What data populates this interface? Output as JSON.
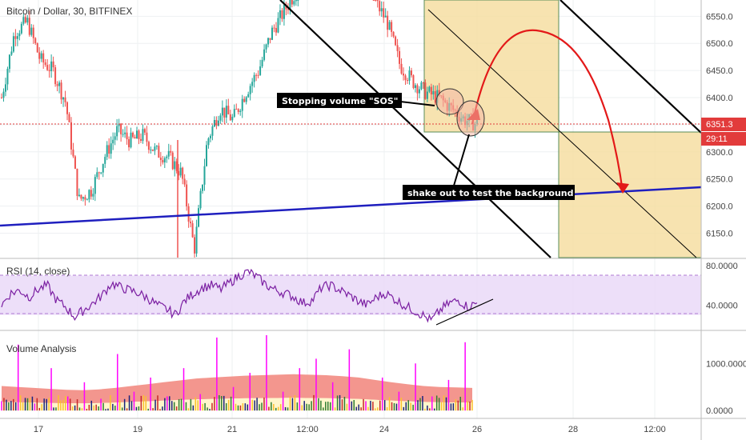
{
  "chart_data": [
    {
      "type": "candlestick",
      "title": "Bitcoin / Dollar, 30, BITFINEX",
      "y_ticks": [
        "6550.0",
        "6500.0",
        "6450.0",
        "6400.0",
        "6350.0",
        "6300.0",
        "6250.0",
        "6200.0",
        "6150.0"
      ],
      "ylim": [
        6105,
        6580
      ],
      "last_price": "6351.3",
      "countdown": "29:11",
      "accent_color": "#e23b3b",
      "series": [
        {
          "kind": "candles",
          "up_color": "#26a69a",
          "down_color": "#ef5350",
          "close_path": [
            6400,
            6520,
            6540,
            6470,
            6450,
            6390,
            6210,
            6230,
            6290,
            6340,
            6320,
            6330,
            6300,
            6290,
            6260,
            6120,
            6320,
            6380,
            6360,
            6410,
            6450,
            6520,
            6560,
            6600,
            6620,
            6600,
            6650,
            6630,
            6610,
            6580,
            6540,
            6460,
            6430,
            6410,
            6400,
            6380,
            6360,
            6351
          ]
        },
        {
          "kind": "trendline",
          "color": "#1f1fbf",
          "from": [
            0,
            6165
          ],
          "to": [
            1,
            6232
          ]
        }
      ],
      "annotations": [
        {
          "text": "Stopping volume \"SOS\""
        },
        {
          "text": "shake out to test the background"
        }
      ]
    },
    {
      "type": "line",
      "title": "RSI (14, close)",
      "y_ticks": [
        "80.0000",
        "40.0000"
      ],
      "ylim": [
        15,
        85
      ],
      "band": [
        30,
        70
      ],
      "series": [
        {
          "name": "RSI",
          "color": "#7b1fa2",
          "values": [
            40,
            52,
            55,
            48,
            56,
            60,
            45,
            38,
            28,
            35,
            42,
            50,
            62,
            58,
            55,
            52,
            47,
            40,
            36,
            30,
            44,
            52,
            58,
            60,
            56,
            63,
            70,
            74,
            68,
            60,
            55,
            52,
            48,
            42,
            45,
            58,
            60,
            55,
            50,
            44,
            40,
            48,
            52,
            46,
            40,
            35,
            30,
            24,
            35,
            42,
            45,
            38,
            42
          ]
        }
      ]
    },
    {
      "type": "area",
      "title": "Volume Analysis",
      "y_ticks": [
        "1000.0000",
        "0.0000"
      ],
      "ylim": [
        -150,
        1650
      ],
      "series": [
        {
          "name": "upper band",
          "color": "#f28b82",
          "values": [
            520,
            500,
            480,
            460,
            440,
            430,
            450,
            480,
            520,
            560,
            600,
            640,
            680,
            700,
            720,
            740,
            750,
            760,
            770,
            760,
            750,
            730,
            700,
            650,
            600,
            560,
            520,
            500,
            490,
            480
          ]
        },
        {
          "name": "volume",
          "color": "#ff00ff",
          "values": [
            200,
            1400,
            150,
            900,
            300,
            600,
            250,
            1200,
            400,
            700,
            300,
            900,
            350,
            1550,
            500,
            800,
            1600,
            400,
            900,
            1100,
            300,
            600,
            1300,
            200,
            700,
            400,
            1000,
            300,
            650,
            1450
          ]
        }
      ]
    }
  ],
  "x_axis_labels": [
    "17",
    "19",
    "21",
    "12:00",
    "24",
    "26",
    "28",
    "12:00"
  ]
}
